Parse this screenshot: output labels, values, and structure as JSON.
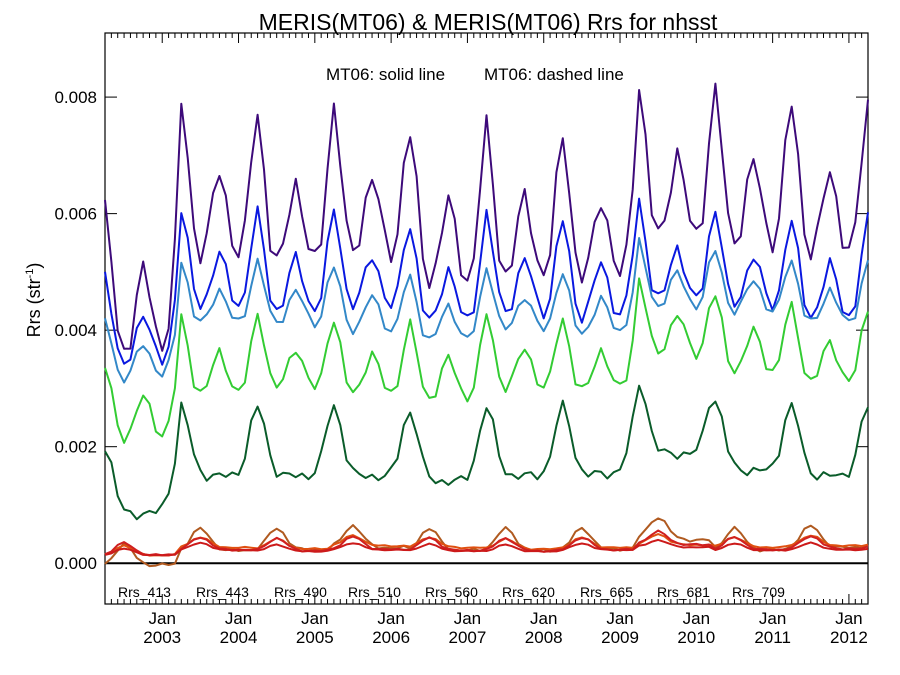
{
  "chart_data": {
    "type": "line",
    "title": "MERIS(MT06) & MERIS(MT06)  Rrs for nhsst",
    "annotation_solid": "MT06: solid line",
    "annotation_dashed": "MT06: dashed line",
    "ylabel_main": "Rrs (str",
    "ylabel_sup": "-1",
    "ylabel_close": ")",
    "xlabel": "",
    "ylim": [
      -0.0007,
      0.0091
    ],
    "xlim": [
      "2002-04",
      "2012-04"
    ],
    "yticks": [
      "0.000",
      "0.002",
      "0.004",
      "0.006",
      "0.008"
    ],
    "ytick_values": [
      0.0,
      0.002,
      0.004,
      0.006,
      0.008
    ],
    "xticks": [
      {
        "month": "Jan",
        "year": "2003",
        "date": "2003-01"
      },
      {
        "month": "Jan",
        "year": "2004",
        "date": "2004-01"
      },
      {
        "month": "Jan",
        "year": "2005",
        "date": "2005-01"
      },
      {
        "month": "Jan",
        "year": "2006",
        "date": "2006-01"
      },
      {
        "month": "Jan",
        "year": "2007",
        "date": "2007-01"
      },
      {
        "month": "Jan",
        "year": "2008",
        "date": "2008-01"
      },
      {
        "month": "Jan",
        "year": "2009",
        "date": "2009-01"
      },
      {
        "month": "Jan",
        "year": "2010",
        "date": "2010-01"
      },
      {
        "month": "Jan",
        "year": "2011",
        "date": "2011-01"
      },
      {
        "month": "Jan",
        "year": "2012",
        "date": "2012-01"
      }
    ],
    "zero_line": 0.0,
    "legend_position": "bottom",
    "series": [
      {
        "name": "Rrs_413",
        "color": "#3d0a7a",
        "amp": 0.0026,
        "kind": "blue",
        "values": [
          0.0061,
          0.0079,
          0.0077,
          0.0079,
          0.0074,
          0.0075,
          0.0074,
          0.0082,
          0.0081,
          0.0079
        ]
      },
      {
        "name": "Rrs_443",
        "color": "#0a18e0",
        "amp": 0.0017,
        "kind": "blue",
        "values": [
          0.005,
          0.0061,
          0.006,
          0.0061,
          0.0058,
          0.006,
          0.0059,
          0.0062,
          0.0061,
          0.0059
        ]
      },
      {
        "name": "Rrs_490",
        "color": "#3388c8",
        "amp": 0.0011,
        "kind": "blue",
        "values": [
          0.0042,
          0.0052,
          0.0052,
          0.0051,
          0.0049,
          0.0051,
          0.005,
          0.0055,
          0.0054,
          0.0052
        ]
      },
      {
        "name": "Rrs_510",
        "color": "#33cc33",
        "amp": 0.0013,
        "kind": "mid",
        "values": [
          0.0034,
          0.0042,
          0.0043,
          0.0042,
          0.0041,
          0.0043,
          0.0042,
          0.0049,
          0.0046,
          0.0044
        ]
      },
      {
        "name": "Rrs_560",
        "color": "#0a5c2a",
        "amp": 0.0012,
        "kind": "green",
        "values": [
          0.002,
          0.0027,
          0.0027,
          0.0027,
          0.0026,
          0.0027,
          0.0027,
          0.0031,
          0.0028,
          0.0027
        ]
      },
      {
        "name": "Rrs_620",
        "color": "#b05a20",
        "amp": 0.00038,
        "kind": "red",
        "values": [
          0.00032,
          0.0006,
          0.0006,
          0.00065,
          0.0006,
          0.0006,
          0.0006,
          0.0008,
          0.0006,
          0.00065
        ]
      },
      {
        "name": "Rrs_665",
        "color": "#e05010",
        "amp": 0.00018,
        "kind": "red",
        "values": [
          0.0003,
          0.00045,
          0.00042,
          0.00048,
          0.00045,
          0.00042,
          0.00044,
          0.0005,
          0.00045,
          0.00048
        ]
      },
      {
        "name": "Rrs_681",
        "color": "#d02020",
        "amp": 0.00022,
        "kind": "red",
        "values": [
          0.00035,
          0.00045,
          0.00043,
          0.00046,
          0.00044,
          0.00043,
          0.00044,
          0.00055,
          0.00045,
          0.00047
        ]
      },
      {
        "name": "Rrs_709",
        "color": "#cc1a1a",
        "amp": 0.00012,
        "kind": "red",
        "values": [
          0.00025,
          0.00035,
          0.00032,
          0.00035,
          0.00033,
          0.00032,
          0.00034,
          0.0004,
          0.00034,
          0.00035
        ]
      }
    ]
  }
}
